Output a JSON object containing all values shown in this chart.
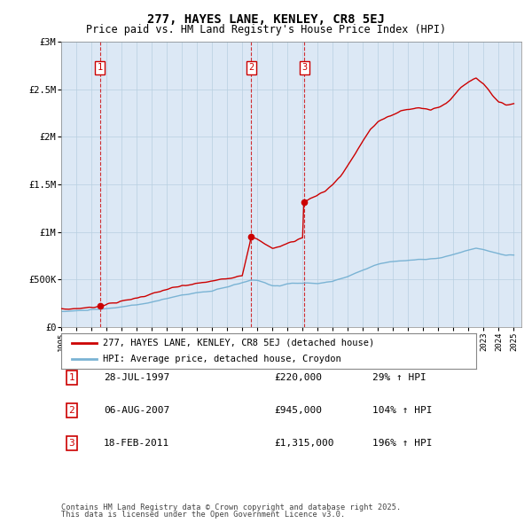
{
  "title_line1": "277, HAYES LANE, KENLEY, CR8 5EJ",
  "title_line2": "Price paid vs. HM Land Registry's House Price Index (HPI)",
  "ytick_labels": [
    "£0",
    "£500K",
    "£1M",
    "£1.5M",
    "£2M",
    "£2.5M",
    "£3M"
  ],
  "ytick_values": [
    0,
    500000,
    1000000,
    1500000,
    2000000,
    2500000,
    3000000
  ],
  "ylim": [
    0,
    3000000
  ],
  "transaction_color": "#cc0000",
  "hpi_color": "#7ab3d4",
  "plot_bg": "#dce8f5",
  "grid_color": "#b8cfe0",
  "transactions": [
    {
      "date_num": 1997.57,
      "price": 220000,
      "label": "1"
    },
    {
      "date_num": 2007.59,
      "price": 945000,
      "label": "2"
    },
    {
      "date_num": 2011.12,
      "price": 1315000,
      "label": "3"
    }
  ],
  "legend_entry1": "277, HAYES LANE, KENLEY, CR8 5EJ (detached house)",
  "legend_entry2": "HPI: Average price, detached house, Croydon",
  "footnote1": "Contains HM Land Registry data © Crown copyright and database right 2025.",
  "footnote2": "This data is licensed under the Open Government Licence v3.0.",
  "table_rows": [
    {
      "num": "1",
      "date": "28-JUL-1997",
      "price": "£220,000",
      "hpi": "29% ↑ HPI"
    },
    {
      "num": "2",
      "date": "06-AUG-2007",
      "price": "£945,000",
      "hpi": "104% ↑ HPI"
    },
    {
      "num": "3",
      "date": "18-FEB-2011",
      "price": "£1,315,000",
      "hpi": "196% ↑ HPI"
    }
  ]
}
